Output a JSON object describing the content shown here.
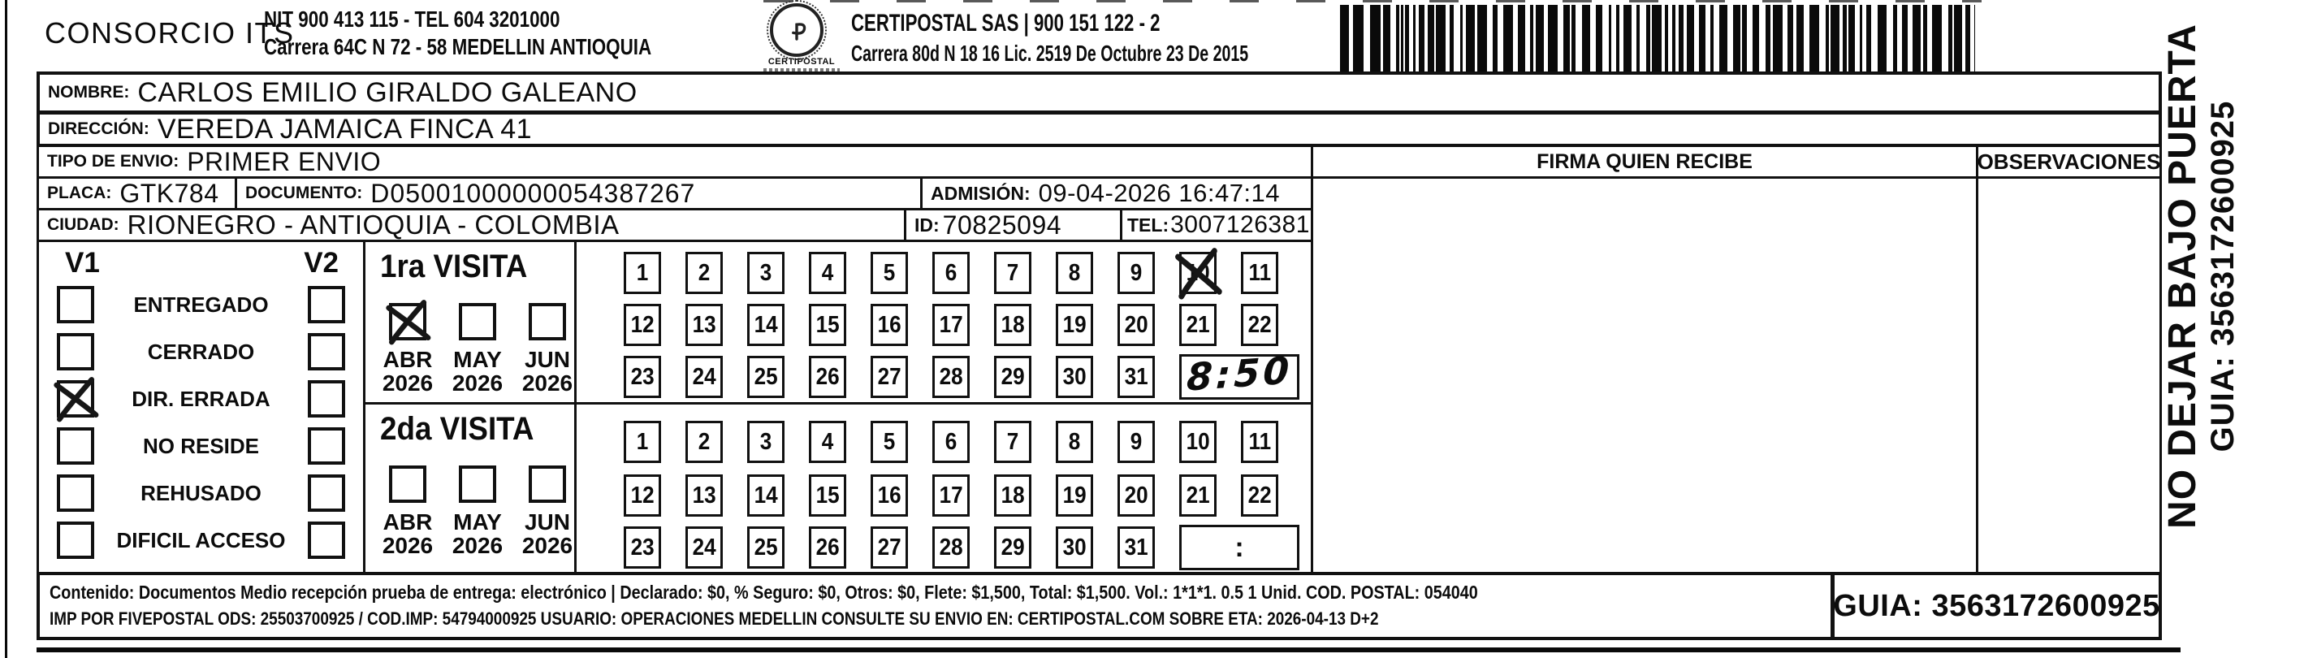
{
  "header": {
    "company_name": "CONSORCIO ITS",
    "company_nit_line": "NIT 900 413 115 - TEL 604 3201000",
    "company_address_line": "Carrera 64C N 72 - 58 MEDELLIN ANTIOQUIA",
    "logo_caption": "CERTIPOSTAL",
    "postal_name_line": "CERTIPOSTAL SAS | 900 151 122 - 2",
    "postal_address_line": "Carrera 80d N 18 16  Lic. 2519 De Octubre 23 De 2015"
  },
  "shipment": {
    "nombre_label": "NOMBRE:",
    "nombre": "CARLOS EMILIO GIRALDO GALEANO",
    "direccion_label": "DIRECCIÓN:",
    "direccion": "VEREDA JAMAICA FINCA 41",
    "tipo_envio_label": "TIPO DE ENVIO:",
    "tipo_envio": "PRIMER ENVIO",
    "placa_label": "PLACA:",
    "placa": "GTK784",
    "documento_label": "DOCUMENTO:",
    "documento": "D05001000000054387267",
    "admision_label": "ADMISIÓN:",
    "admision": "09-04-2026 16:47:14",
    "ciudad_label": "CIUDAD:",
    "ciudad": "RIONEGRO - ANTIOQUIA - COLOMBIA",
    "id_label": "ID:",
    "id_value": "70825094",
    "tel_label": "TEL:",
    "tel": "3007126381"
  },
  "delivery_table": {
    "firma_header": "FIRMA QUIEN RECIBE",
    "observaciones_header": "OBSERVACIONES"
  },
  "status": {
    "v1_label": "V1",
    "v2_label": "V2",
    "options": [
      {
        "label": "ENTREGADO",
        "v1": false,
        "v2": false
      },
      {
        "label": "CERRADO",
        "v1": false,
        "v2": false
      },
      {
        "label": "DIR. ERRADA",
        "v1": true,
        "v2": false
      },
      {
        "label": "NO RESIDE",
        "v1": false,
        "v2": false
      },
      {
        "label": "REHUSADO",
        "v1": false,
        "v2": false
      },
      {
        "label": "DIFICIL ACCESO",
        "v1": false,
        "v2": false
      }
    ]
  },
  "visits": [
    {
      "title": "1ra VISITA",
      "months": [
        {
          "month": "ABR",
          "year": "2026",
          "checked": true
        },
        {
          "month": "MAY",
          "year": "2026",
          "checked": false
        },
        {
          "month": "JUN",
          "year": "2026",
          "checked": false
        }
      ],
      "day_rows": [
        [
          "1",
          "2",
          "3",
          "4",
          "5",
          "6",
          "7",
          "8",
          "9",
          "10",
          "11"
        ],
        [
          "12",
          "13",
          "14",
          "15",
          "16",
          "17",
          "18",
          "19",
          "20",
          "21",
          "22"
        ],
        [
          "23",
          "24",
          "25",
          "26",
          "27",
          "28",
          "29",
          "30",
          "31"
        ]
      ],
      "crossed_day": "10",
      "handwritten_time": "8:50",
      "time_colon": ":"
    },
    {
      "title": "2da VISITA",
      "months": [
        {
          "month": "ABR",
          "year": "2026",
          "checked": false
        },
        {
          "month": "MAY",
          "year": "2026",
          "checked": false
        },
        {
          "month": "JUN",
          "year": "2026",
          "checked": false
        }
      ],
      "day_rows": [
        [
          "1",
          "2",
          "3",
          "4",
          "5",
          "6",
          "7",
          "8",
          "9",
          "10",
          "11"
        ],
        [
          "12",
          "13",
          "14",
          "15",
          "16",
          "17",
          "18",
          "19",
          "20",
          "21",
          "22"
        ],
        [
          "23",
          "24",
          "25",
          "26",
          "27",
          "28",
          "29",
          "30",
          "31"
        ]
      ],
      "crossed_day": null,
      "handwritten_time": null,
      "time_colon": ":"
    }
  ],
  "footer": {
    "line1": "Contenido: Documentos Medio recepción prueba de entrega: electrónico | Declarado: $0, % Seguro: $0, Otros: $0, Flete: $1,500, Total: $1,500. Vol.: 1*1*1. 0.5  1 Unid. COD. POSTAL: 054040",
    "line2": "IMP POR FIVEPOSTAL ODS: 25503700925 / COD.IMP: 54794000925 USUARIO: OPERACIONES MEDELLIN CONSULTE SU ENVIO EN: CERTIPOSTAL.COM SOBRE ETA: 2026-04-13 D+2",
    "guia": "GUIA: 3563172600925"
  },
  "side_note": {
    "line1": "NO DEJAR BAJO PUERTA",
    "line2": "GUIA: 3563172600925"
  },
  "icons": {
    "logo": "certipostal-stamp-logo",
    "barcode": "shipment-barcode"
  },
  "colors": {
    "ink": "#0c0c0c",
    "paper": "#ffffff"
  }
}
